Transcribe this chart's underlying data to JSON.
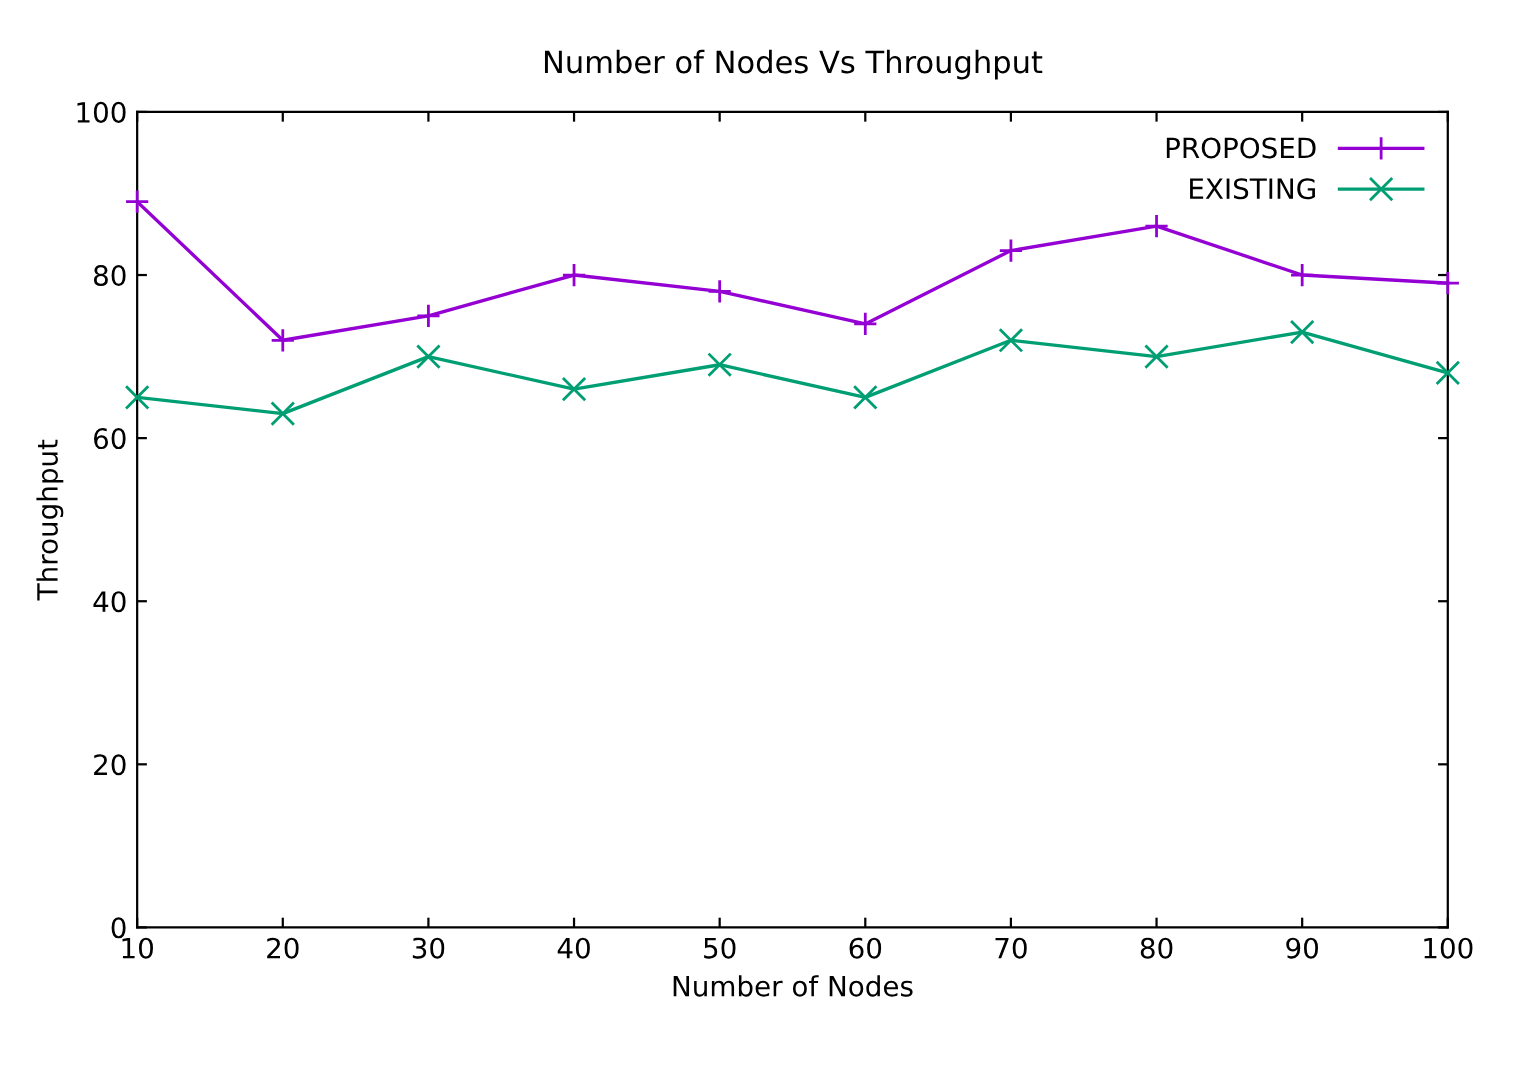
{
  "chart_data": {
    "type": "line",
    "title": "Number of Nodes Vs Throughput",
    "xlabel": "Number of Nodes",
    "ylabel": "Throughput",
    "x": [
      10,
      20,
      30,
      40,
      50,
      60,
      70,
      80,
      90,
      100
    ],
    "series": [
      {
        "name": "PROPOSED",
        "color": "#9400d3",
        "marker": "plus",
        "values": [
          89,
          72,
          75,
          80,
          78,
          74,
          83,
          86,
          80,
          79
        ]
      },
      {
        "name": "EXISTING",
        "color": "#009e73",
        "marker": "cross",
        "values": [
          65,
          63,
          70,
          66,
          69,
          65,
          72,
          70,
          73,
          68
        ]
      }
    ],
    "xlim": [
      10,
      100
    ],
    "xticks": [
      10,
      20,
      30,
      40,
      50,
      60,
      70,
      80,
      90,
      100
    ],
    "ylim": [
      0,
      100
    ],
    "yticks": [
      0,
      20,
      40,
      60,
      80,
      100
    ],
    "grid": false,
    "legend": "top right",
    "line_style": "solid"
  }
}
